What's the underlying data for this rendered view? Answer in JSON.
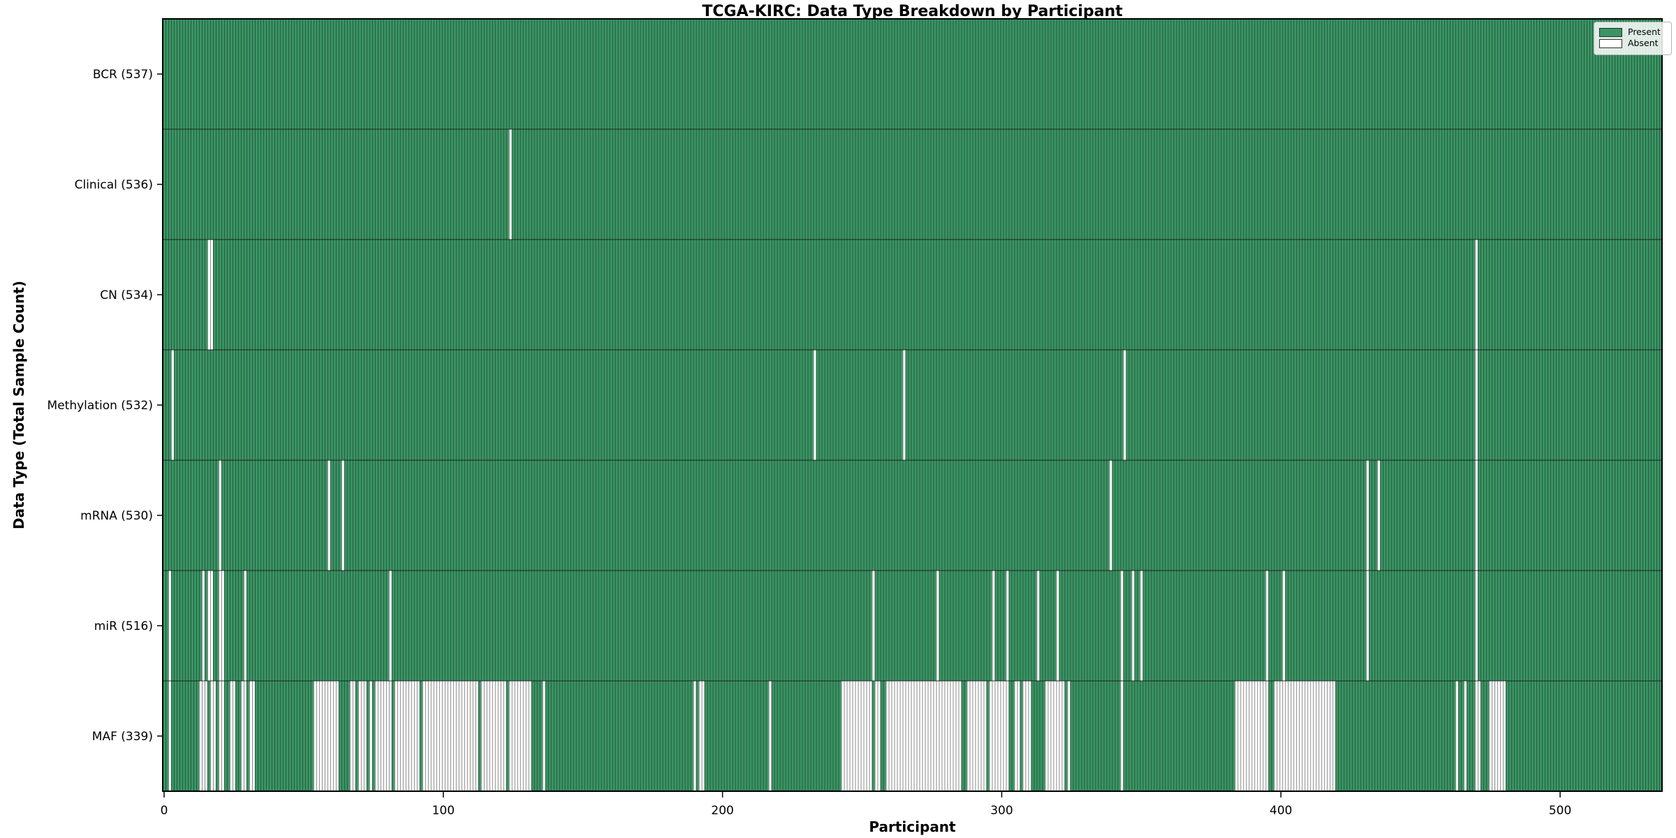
{
  "title": "TCGA-KIRC: Data Type Breakdown by Participant",
  "axes": {
    "xlabel": "Participant",
    "ylabel": "Data Type (Total Sample Count)"
  },
  "legend": {
    "items": [
      {
        "label": "Present",
        "color": "#3b9464"
      },
      {
        "label": "Absent",
        "color": "#ffffff"
      }
    ]
  },
  "colors": {
    "present_fill": "#3b9464",
    "present_edge": "#235c3d",
    "absent_fill": "#ffffff",
    "absent_edge": "#8a8a8a",
    "spine": "#000000",
    "divider": "#1a1a1a",
    "tick_text": "#000000"
  },
  "chart_data": {
    "type": "heatmap",
    "title": "TCGA-KIRC: Data Type Breakdown by Participant",
    "xlabel": "Participant",
    "ylabel": "Data Type (Total Sample Count)",
    "legend_entries": [
      "Present",
      "Absent"
    ],
    "legend_position": "upper right",
    "n_participants": 537,
    "xlim": [
      -0.5,
      536.5
    ],
    "x_ticks": [
      0,
      100,
      200,
      300,
      400,
      500
    ],
    "value_encoding": "green bar = data type present for participant, white gap = absent; absent_ranges are inclusive participant index ranges",
    "rows": [
      {
        "name": "BCR",
        "total": 537,
        "label": "BCR (537)",
        "absent_ranges": []
      },
      {
        "name": "Clinical",
        "total": 536,
        "label": "Clinical (536)",
        "absent_ranges": [
          [
            124,
            124
          ]
        ]
      },
      {
        "name": "CN",
        "total": 534,
        "label": "CN (534)",
        "absent_ranges": [
          [
            16,
            17
          ],
          [
            470,
            470
          ]
        ]
      },
      {
        "name": "Methylation",
        "total": 532,
        "label": "Methylation (532)",
        "absent_ranges": [
          [
            3,
            3
          ],
          [
            233,
            233
          ],
          [
            265,
            265
          ],
          [
            344,
            344
          ],
          [
            470,
            470
          ]
        ]
      },
      {
        "name": "mRNA",
        "total": 530,
        "label": "mRNA (530)",
        "absent_ranges": [
          [
            20,
            20
          ],
          [
            59,
            59
          ],
          [
            64,
            64
          ],
          [
            339,
            339
          ],
          [
            431,
            431
          ],
          [
            435,
            435
          ],
          [
            470,
            470
          ]
        ]
      },
      {
        "name": "miR",
        "total": 516,
        "label": "miR (516)",
        "absent_ranges": [
          [
            2,
            2
          ],
          [
            14,
            14
          ],
          [
            16,
            17
          ],
          [
            20,
            21
          ],
          [
            29,
            29
          ],
          [
            81,
            81
          ],
          [
            254,
            254
          ],
          [
            277,
            277
          ],
          [
            297,
            297
          ],
          [
            302,
            302
          ],
          [
            313,
            313
          ],
          [
            320,
            320
          ],
          [
            343,
            343
          ],
          [
            347,
            347
          ],
          [
            350,
            350
          ],
          [
            395,
            395
          ],
          [
            401,
            401
          ],
          [
            431,
            431
          ],
          [
            470,
            470
          ]
        ]
      },
      {
        "name": "MAF",
        "total": 339,
        "label": "MAF (339)",
        "absent_ranges": [
          [
            2,
            2
          ],
          [
            13,
            15
          ],
          [
            17,
            18
          ],
          [
            20,
            21
          ],
          [
            24,
            25
          ],
          [
            28,
            29
          ],
          [
            31,
            32
          ],
          [
            54,
            62
          ],
          [
            67,
            68
          ],
          [
            70,
            72
          ],
          [
            74,
            74
          ],
          [
            76,
            81
          ],
          [
            83,
            91
          ],
          [
            93,
            112
          ],
          [
            114,
            122
          ],
          [
            124,
            131
          ],
          [
            136,
            136
          ],
          [
            190,
            190
          ],
          [
            192,
            193
          ],
          [
            217,
            217
          ],
          [
            243,
            253
          ],
          [
            255,
            256
          ],
          [
            259,
            285
          ],
          [
            288,
            294
          ],
          [
            296,
            302
          ],
          [
            305,
            306
          ],
          [
            308,
            310
          ],
          [
            316,
            322
          ],
          [
            324,
            324
          ],
          [
            343,
            343
          ],
          [
            384,
            395
          ],
          [
            398,
            419
          ],
          [
            463,
            463
          ],
          [
            466,
            466
          ],
          [
            470,
            471
          ],
          [
            475,
            476
          ],
          [
            477,
            480
          ]
        ]
      }
    ]
  }
}
